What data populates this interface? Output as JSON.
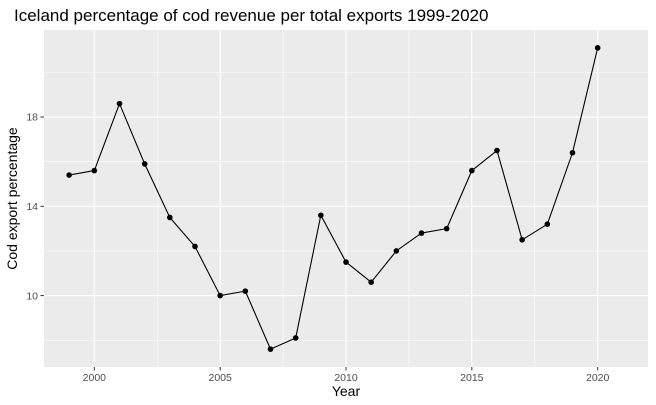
{
  "chart_data": {
    "type": "line",
    "title": "Iceland percentage of cod revenue per total exports 1999-2020",
    "xlabel": "Year",
    "ylabel": "Cod export percentage",
    "xlim": [
      1998,
      2022
    ],
    "ylim": [
      6.8,
      21.9
    ],
    "x_ticks": [
      2000,
      2005,
      2010,
      2015,
      2020
    ],
    "x_tick_labels": [
      "2000",
      "2005",
      "2010",
      "2015",
      "2020"
    ],
    "y_ticks": [
      10,
      14,
      18
    ],
    "y_tick_labels": [
      "10",
      "14",
      "18"
    ],
    "grid": true,
    "legend": "none",
    "colors": {
      "panel_background": "#ebebeb",
      "grid_major": "#ffffff",
      "line": "#000000",
      "point": "#000000",
      "tick_mark": "#333333"
    },
    "series": [
      {
        "x": [
          1999,
          2000,
          2001,
          2002,
          2003,
          2004,
          2005,
          2006,
          2007,
          2008,
          2009,
          2010,
          2011,
          2012,
          2013,
          2014,
          2015,
          2016,
          2017,
          2018,
          2019,
          2020
        ],
        "y": [
          15.4,
          15.6,
          18.6,
          15.9,
          13.5,
          12.2,
          10.0,
          10.2,
          7.6,
          8.1,
          13.6,
          11.5,
          10.6,
          12.0,
          12.8,
          13.0,
          15.6,
          16.5,
          12.5,
          13.2,
          16.4,
          21.1
        ]
      }
    ]
  }
}
